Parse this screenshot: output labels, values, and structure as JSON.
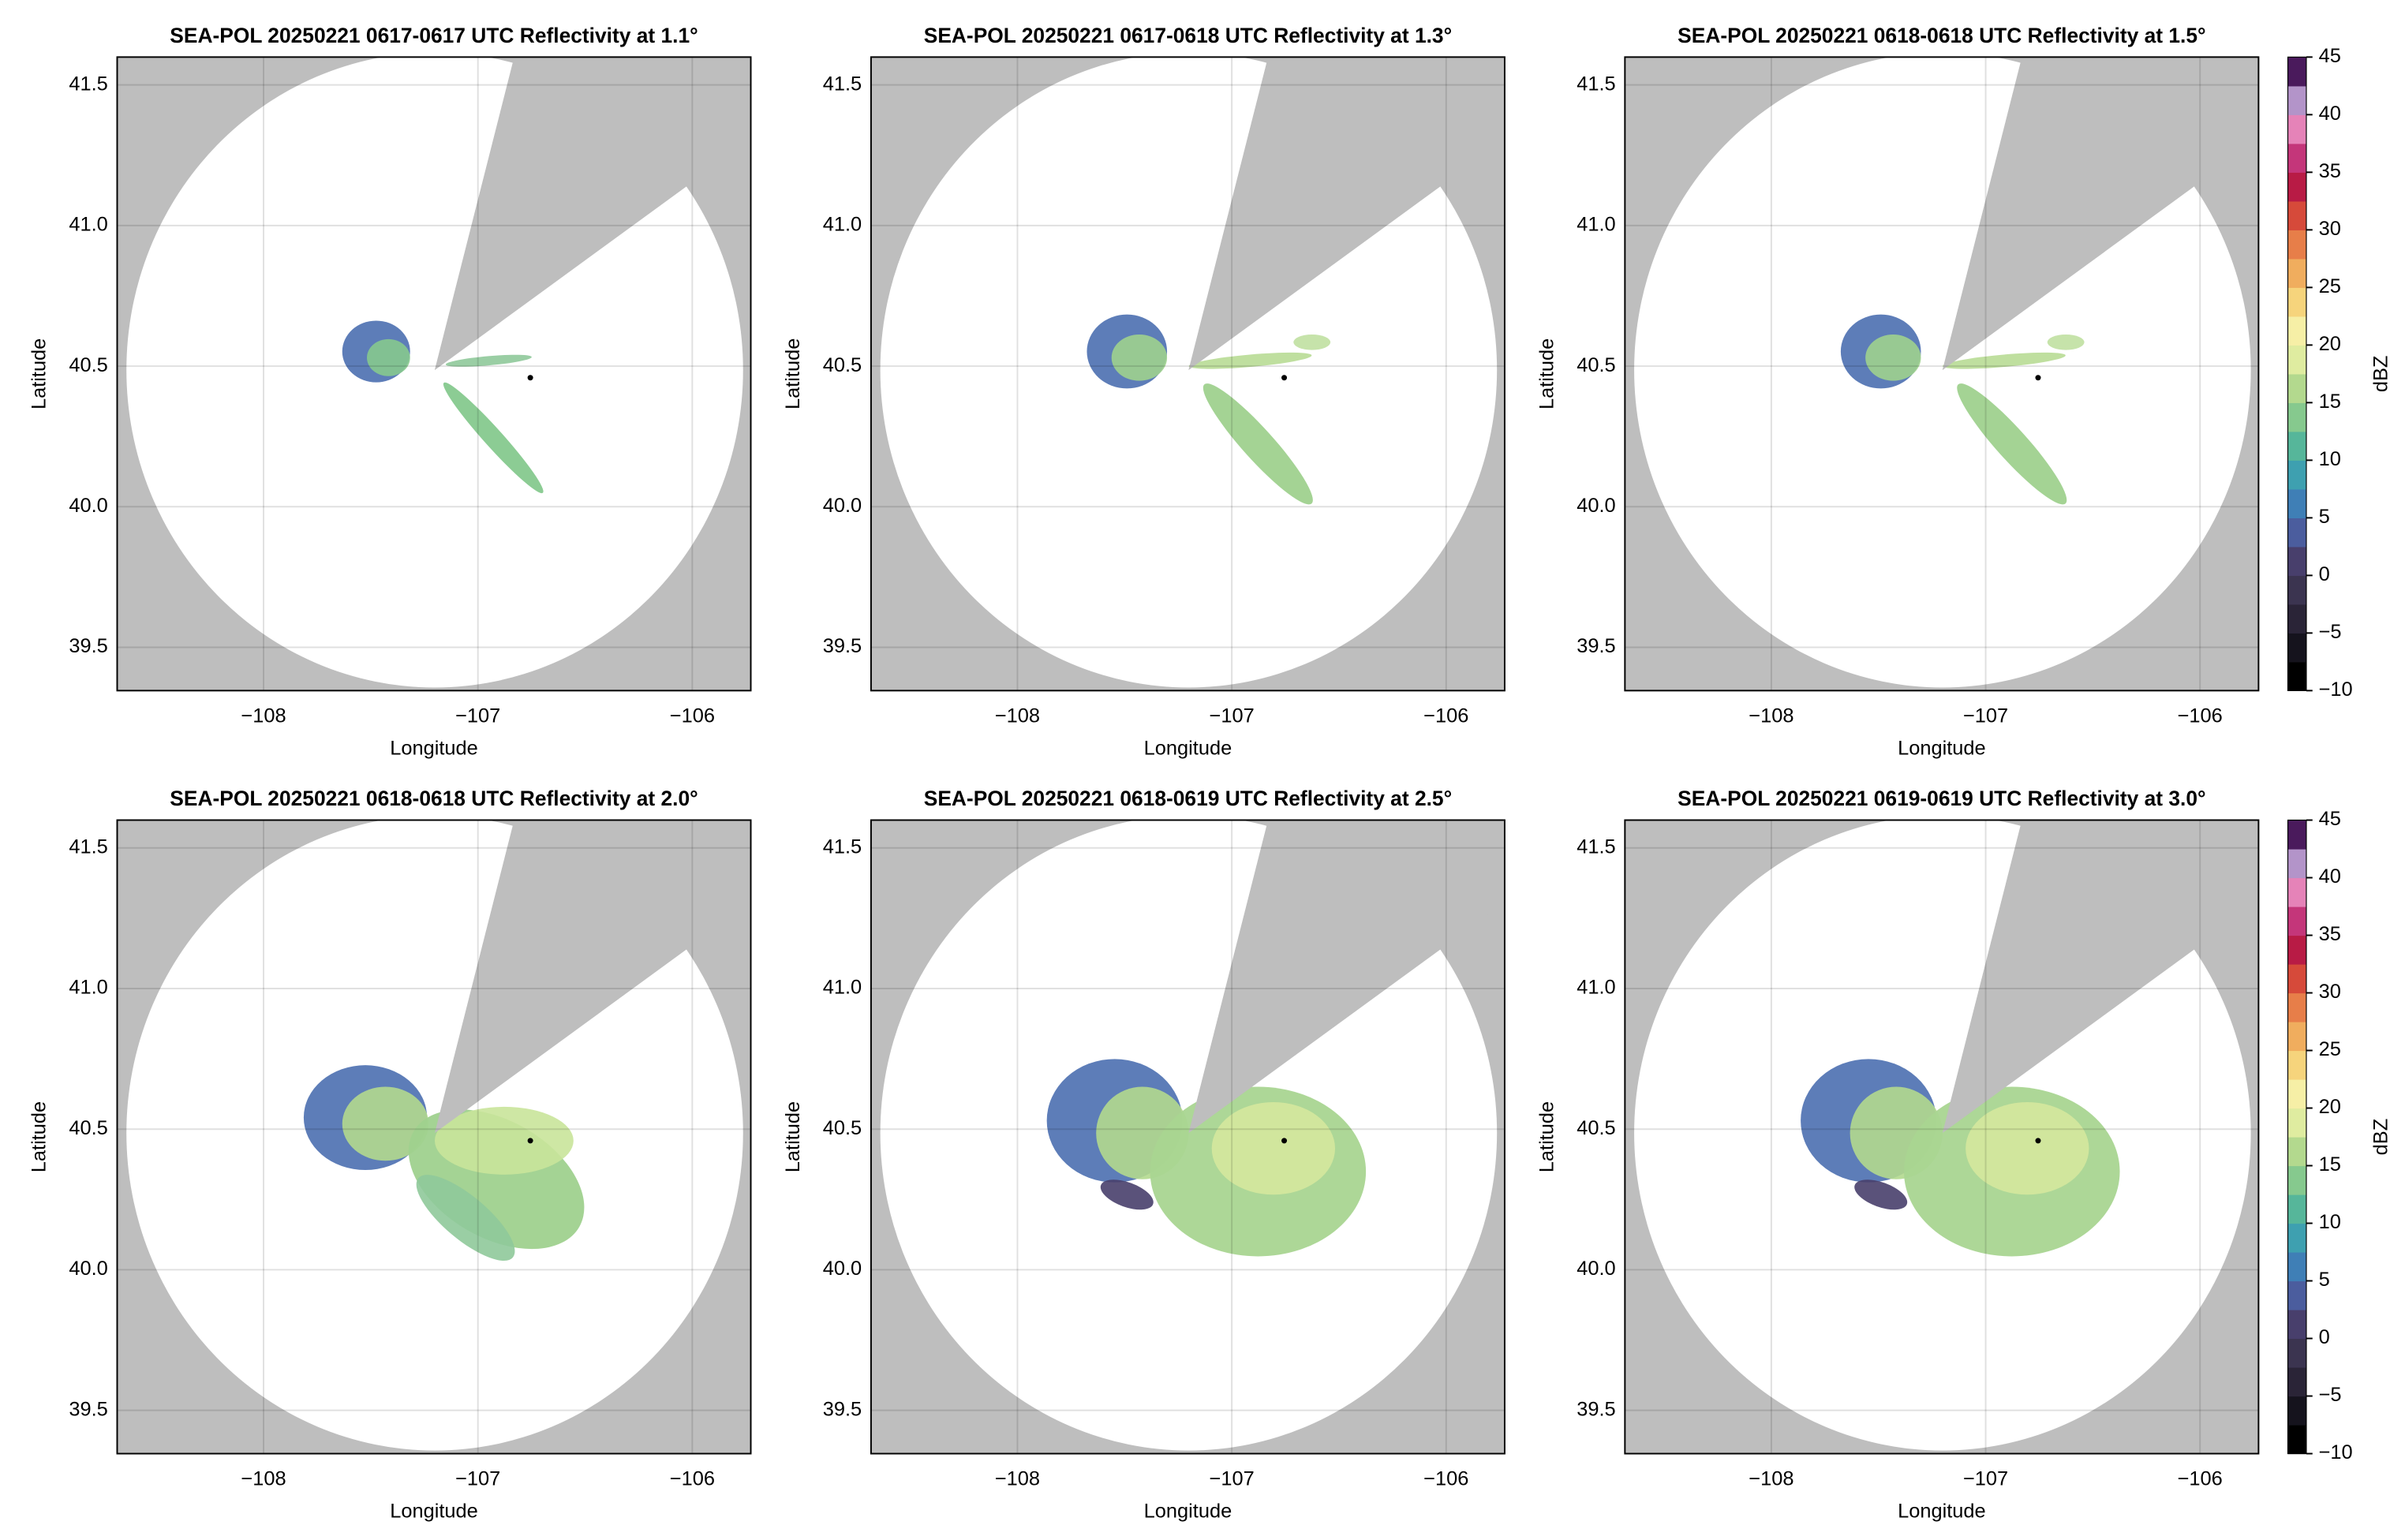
{
  "chart_data": [
    {
      "type": "radar",
      "title": "SEA-POL 20250221 0617-0617 UTC Reflectivity at 1.1°",
      "xlabel": "Longitude",
      "ylabel": "Latitude",
      "xlim": [
        -108.683,
        -105.727
      ],
      "ylim": [
        39.346,
        41.599
      ],
      "xticks": [
        {
          "value": -108,
          "label": "−108"
        },
        {
          "value": -107,
          "label": "−107"
        },
        {
          "value": -106,
          "label": "−106"
        }
      ],
      "yticks": [
        39.5,
        {
          "value": 40.0,
          "label": "40.0"
        },
        40.5,
        {
          "value": 41.0,
          "label": "41.0"
        },
        41.5
      ],
      "grid": true,
      "background_color": "#bebebe"
    },
    {
      "type": "radar",
      "title": "SEA-POL 20250221 0617-0618 UTC Reflectivity at 1.3°",
      "xlabel": "Longitude",
      "ylabel": "Latitude",
      "xlim": [
        -108.683,
        -105.727
      ],
      "ylim": [
        39.346,
        41.599
      ],
      "xticks": [
        {
          "value": -108,
          "label": "−108"
        },
        {
          "value": -107,
          "label": "−107"
        },
        {
          "value": -106,
          "label": "−106"
        }
      ],
      "yticks": [
        39.5,
        {
          "value": 40.0,
          "label": "40.0"
        },
        40.5,
        {
          "value": 41.0,
          "label": "41.0"
        },
        41.5
      ],
      "grid": true,
      "background_color": "#bebebe"
    },
    {
      "type": "radar",
      "title": "SEA-POL 20250221 0618-0618 UTC Reflectivity at 1.5°",
      "xlabel": "Longitude",
      "ylabel": "Latitude",
      "xlim": [
        -108.683,
        -105.727
      ],
      "ylim": [
        39.346,
        41.599
      ],
      "xticks": [
        {
          "value": -108,
          "label": "−108"
        },
        {
          "value": -107,
          "label": "−107"
        },
        {
          "value": -106,
          "label": "−106"
        }
      ],
      "yticks": [
        39.5,
        {
          "value": 40.0,
          "label": "40.0"
        },
        40.5,
        {
          "value": 41.0,
          "label": "41.0"
        },
        41.5
      ],
      "grid": true,
      "background_color": "#bebebe",
      "colorbar": {
        "label": "dBZ",
        "clim": [
          -10,
          45
        ],
        "ticks": [
          {
            "value": -10,
            "label": "−10"
          },
          {
            "value": -5,
            "label": "−5"
          },
          0,
          5,
          10,
          15,
          20,
          25,
          30,
          35,
          40,
          45
        ],
        "colors": [
          "#000000",
          "#15131d",
          "#2a2437",
          "#3b3450",
          "#483f6c",
          "#4b5d9e",
          "#3f7fb6",
          "#3ea0b0",
          "#56b69a",
          "#86c98e",
          "#b3d98e",
          "#dfeca0",
          "#f6efa6",
          "#f6d47c",
          "#f0ad5e",
          "#e77e49",
          "#d64a3a",
          "#b81b45",
          "#c4367a",
          "#e583b8",
          "#b394c9",
          "#4a1a5c"
        ]
      }
    },
    {
      "type": "radar",
      "title": "SEA-POL 20250221 0618-0618 UTC Reflectivity at 2.0°",
      "xlabel": "Longitude",
      "ylabel": "Latitude",
      "xlim": [
        -108.683,
        -105.727
      ],
      "ylim": [
        39.346,
        41.599
      ],
      "xticks": [
        {
          "value": -108,
          "label": "−108"
        },
        {
          "value": -107,
          "label": "−107"
        },
        {
          "value": -106,
          "label": "−106"
        }
      ],
      "yticks": [
        39.5,
        {
          "value": 40.0,
          "label": "40.0"
        },
        40.5,
        {
          "value": 41.0,
          "label": "41.0"
        },
        41.5
      ],
      "grid": true,
      "background_color": "#bebebe"
    },
    {
      "type": "radar",
      "title": "SEA-POL 20250221 0618-0619 UTC Reflectivity at 2.5°",
      "xlabel": "Longitude",
      "ylabel": "Latitude",
      "xlim": [
        -108.683,
        -105.727
      ],
      "ylim": [
        39.346,
        41.599
      ],
      "xticks": [
        {
          "value": -108,
          "label": "−108"
        },
        {
          "value": -107,
          "label": "−107"
        },
        {
          "value": -106,
          "label": "−106"
        }
      ],
      "yticks": [
        39.5,
        {
          "value": 40.0,
          "label": "40.0"
        },
        40.5,
        {
          "value": 41.0,
          "label": "41.0"
        },
        41.5
      ],
      "grid": true,
      "background_color": "#bebebe"
    },
    {
      "type": "radar",
      "title": "SEA-POL 20250221 0619-0619 UTC Reflectivity at 3.0°",
      "xlabel": "Longitude",
      "ylabel": "Latitude",
      "xlim": [
        -108.683,
        -105.727
      ],
      "ylim": [
        39.346,
        41.599
      ],
      "xticks": [
        {
          "value": -108,
          "label": "−108"
        },
        {
          "value": -107,
          "label": "−107"
        },
        {
          "value": -106,
          "label": "−106"
        }
      ],
      "yticks": [
        39.5,
        {
          "value": 40.0,
          "label": "40.0"
        },
        40.5,
        {
          "value": 41.0,
          "label": "41.0"
        },
        41.5
      ],
      "grid": true,
      "background_color": "#bebebe",
      "colorbar": {
        "label": "dBZ",
        "clim": [
          -10,
          45
        ],
        "ticks": [
          {
            "value": -10,
            "label": "−10"
          },
          {
            "value": -5,
            "label": "−5"
          },
          0,
          5,
          10,
          15,
          20,
          25,
          30,
          35,
          40,
          45
        ],
        "colors": [
          "#000000",
          "#15131d",
          "#2a2437",
          "#3b3450",
          "#483f6c",
          "#4b5d9e",
          "#3f7fb6",
          "#3ea0b0",
          "#56b69a",
          "#86c98e",
          "#b3d98e",
          "#dfeca0",
          "#f6efa6",
          "#f6d47c",
          "#f0ad5e",
          "#e77e49",
          "#d64a3a",
          "#b81b45",
          "#c4367a",
          "#e583b8",
          "#b394c9",
          "#4a1a5c"
        ]
      }
    }
  ]
}
